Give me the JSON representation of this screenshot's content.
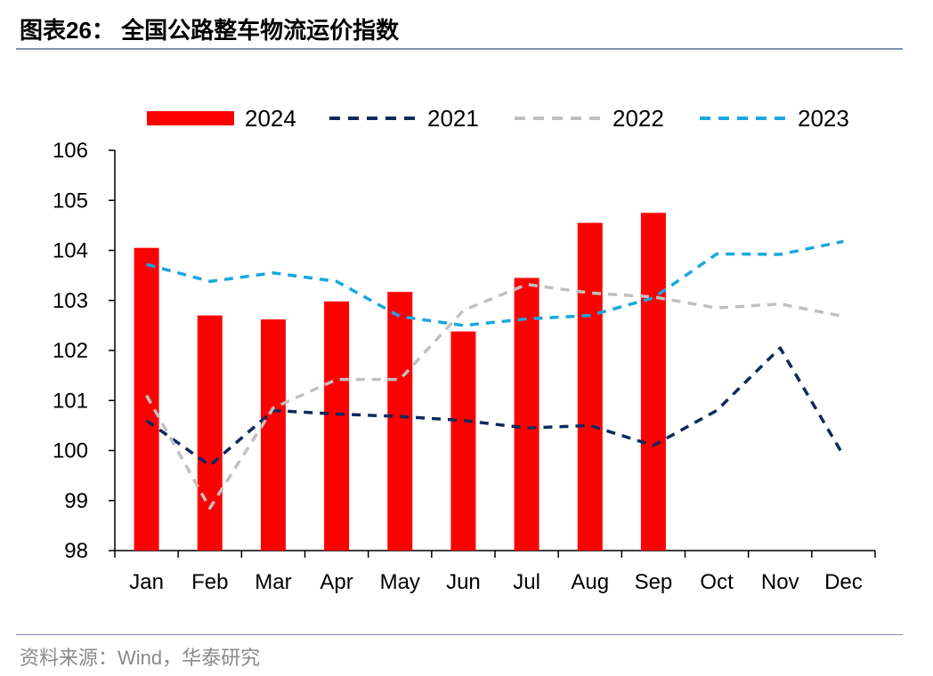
{
  "header": {
    "title": "图表26：  全国公路整车物流运价指数"
  },
  "footer": {
    "source": "资料来源：Wind，华泰研究"
  },
  "chart_data": {
    "type": "bar",
    "categories": [
      "Jan",
      "Feb",
      "Mar",
      "Apr",
      "May",
      "Jun",
      "Jul",
      "Aug",
      "Sep",
      "Oct",
      "Nov",
      "Dec"
    ],
    "ylim": [
      98,
      106
    ],
    "yticks": [
      98,
      99,
      100,
      101,
      102,
      103,
      104,
      105,
      106
    ],
    "legend_position": "top",
    "grid": false,
    "series": [
      {
        "name": "2024",
        "kind": "bar",
        "color": "#ff0000",
        "values": [
          104.05,
          102.7,
          102.62,
          102.98,
          103.17,
          102.38,
          103.45,
          104.55,
          104.75,
          null,
          null,
          null
        ]
      },
      {
        "name": "2021",
        "kind": "dashed-line",
        "color": "#0d2a5e",
        "values": [
          100.6,
          99.7,
          100.8,
          100.73,
          100.68,
          100.6,
          100.45,
          100.5,
          100.1,
          100.8,
          102.05,
          99.9
        ]
      },
      {
        "name": "2022",
        "kind": "dashed-line",
        "color": "#c0c0c0",
        "values": [
          101.1,
          98.85,
          100.85,
          101.42,
          101.42,
          102.8,
          103.32,
          103.15,
          103.07,
          102.85,
          102.93,
          102.68
        ]
      },
      {
        "name": "2023",
        "kind": "dashed-line",
        "color": "#1aa7e0",
        "values": [
          103.72,
          103.38,
          103.55,
          103.38,
          102.68,
          102.5,
          102.63,
          102.7,
          103.05,
          103.93,
          103.92,
          104.18
        ]
      }
    ]
  }
}
